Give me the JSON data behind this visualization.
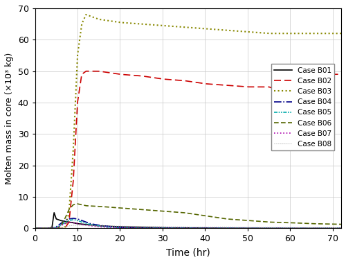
{
  "title": "",
  "xlabel": "Time (hr)",
  "ylabel": "Molten mass in core (×10³ kg)",
  "xlim": [
    0,
    72
  ],
  "ylim": [
    0,
    70
  ],
  "xticks": [
    0,
    10,
    20,
    30,
    40,
    50,
    60,
    70
  ],
  "yticks": [
    0,
    10,
    20,
    30,
    40,
    50,
    60,
    70
  ],
  "background_color": "#ffffff",
  "grid_color": "#c8c8c8",
  "cases": [
    {
      "label": "Case B01",
      "color": "#000000",
      "linestyle": "solid",
      "linewidth": 1.2,
      "key_points": [
        [
          0,
          0
        ],
        [
          3,
          0
        ],
        [
          4,
          0.3
        ],
        [
          4.5,
          5
        ],
        [
          5,
          3
        ],
        [
          6,
          2.5
        ],
        [
          7,
          2.2
        ],
        [
          8,
          2
        ],
        [
          9,
          1.8
        ],
        [
          10,
          1.5
        ],
        [
          15,
          0.8
        ],
        [
          20,
          0.5
        ],
        [
          30,
          0.2
        ],
        [
          40,
          0.1
        ],
        [
          50,
          0.05
        ],
        [
          60,
          0.02
        ],
        [
          72,
          0.01
        ]
      ]
    },
    {
      "label": "Case B02",
      "color": "#cc0000",
      "linestyle": "dashed",
      "linewidth": 1.2,
      "dashes": [
        6,
        3
      ],
      "key_points": [
        [
          0,
          0
        ],
        [
          7,
          0
        ],
        [
          8,
          2
        ],
        [
          9,
          15
        ],
        [
          10,
          40
        ],
        [
          11,
          49
        ],
        [
          12,
          50
        ],
        [
          15,
          50
        ],
        [
          20,
          49
        ],
        [
          25,
          48.5
        ],
        [
          30,
          47.5
        ],
        [
          35,
          47
        ],
        [
          40,
          46
        ],
        [
          45,
          45.5
        ],
        [
          50,
          45
        ],
        [
          55,
          45
        ],
        [
          56,
          44.5
        ],
        [
          57,
          47
        ],
        [
          58,
          49.5
        ],
        [
          60,
          49.5
        ],
        [
          65,
          49
        ],
        [
          70,
          49
        ],
        [
          72,
          49
        ]
      ]
    },
    {
      "label": "Case B03",
      "color": "#888800",
      "linestyle": "dotted",
      "linewidth": 1.5,
      "key_points": [
        [
          0,
          0
        ],
        [
          7,
          0
        ],
        [
          8,
          5
        ],
        [
          9,
          25
        ],
        [
          10,
          55
        ],
        [
          11,
          65
        ],
        [
          12,
          68
        ],
        [
          13,
          67.5
        ],
        [
          15,
          66.5
        ],
        [
          20,
          65.5
        ],
        [
          25,
          65
        ],
        [
          30,
          64.5
        ],
        [
          35,
          64
        ],
        [
          40,
          63.5
        ],
        [
          45,
          63
        ],
        [
          50,
          62.5
        ],
        [
          55,
          62
        ],
        [
          60,
          62
        ],
        [
          65,
          62
        ],
        [
          72,
          62
        ]
      ]
    },
    {
      "label": "Case B04",
      "color": "#000088",
      "linestyle": "dashdot",
      "linewidth": 1.2,
      "key_points": [
        [
          0,
          0
        ],
        [
          4,
          0
        ],
        [
          5,
          0.5
        ],
        [
          6,
          1.5
        ],
        [
          7,
          2.5
        ],
        [
          8,
          3
        ],
        [
          9,
          3.2
        ],
        [
          10,
          3
        ],
        [
          11,
          2.5
        ],
        [
          12,
          2
        ],
        [
          13,
          1.5
        ],
        [
          15,
          1
        ],
        [
          18,
          0.5
        ],
        [
          20,
          0.3
        ],
        [
          25,
          0.1
        ],
        [
          30,
          0.05
        ],
        [
          40,
          0.02
        ],
        [
          50,
          0.01
        ],
        [
          72,
          0.0
        ]
      ]
    },
    {
      "label": "Case B05",
      "color": "#00aaaa",
      "linestyle": "dashdotdotted",
      "linewidth": 1.2,
      "key_points": [
        [
          0,
          0
        ],
        [
          4,
          0
        ],
        [
          5,
          0.3
        ],
        [
          6,
          1
        ],
        [
          7,
          1.8
        ],
        [
          8,
          2.5
        ],
        [
          9,
          2.8
        ],
        [
          10,
          2.5
        ],
        [
          11,
          2
        ],
        [
          12,
          1.5
        ],
        [
          14,
          1
        ],
        [
          16,
          0.5
        ],
        [
          20,
          0.2
        ],
        [
          25,
          0.1
        ],
        [
          30,
          0.05
        ],
        [
          40,
          0.02
        ],
        [
          50,
          0.01
        ],
        [
          72,
          0.0
        ]
      ]
    },
    {
      "label": "Case B06",
      "color": "#556600",
      "linestyle": "dashed",
      "linewidth": 1.2,
      "dashes": [
        4,
        2
      ],
      "key_points": [
        [
          0,
          0
        ],
        [
          5,
          0
        ],
        [
          6,
          0.5
        ],
        [
          7,
          3
        ],
        [
          8,
          6
        ],
        [
          9,
          7.5
        ],
        [
          10,
          7.8
        ],
        [
          11,
          7.5
        ],
        [
          12,
          7.2
        ],
        [
          15,
          7
        ],
        [
          20,
          6.5
        ],
        [
          25,
          6
        ],
        [
          30,
          5.5
        ],
        [
          35,
          5
        ],
        [
          40,
          4
        ],
        [
          45,
          3
        ],
        [
          50,
          2.5
        ],
        [
          55,
          2
        ],
        [
          60,
          1.8
        ],
        [
          65,
          1.5
        ],
        [
          72,
          1.3
        ]
      ]
    },
    {
      "label": "Case B07",
      "color": "#aa00aa",
      "linestyle": "dotted",
      "linewidth": 1.2,
      "key_points": [
        [
          0,
          0
        ],
        [
          4,
          0
        ],
        [
          5,
          0.2
        ],
        [
          6,
          0.8
        ],
        [
          7,
          1.5
        ],
        [
          8,
          2
        ],
        [
          9,
          1.8
        ],
        [
          10,
          1.5
        ],
        [
          12,
          1
        ],
        [
          15,
          0.5
        ],
        [
          20,
          0.2
        ],
        [
          25,
          0.1
        ],
        [
          30,
          0.05
        ],
        [
          40,
          0.02
        ],
        [
          72,
          0.0
        ]
      ]
    },
    {
      "label": "Case B08",
      "color": "#aaaaaa",
      "linestyle": "dotted",
      "linewidth": 0.8,
      "key_points": [
        [
          0,
          0
        ],
        [
          5,
          0
        ],
        [
          6,
          0.2
        ],
        [
          7,
          0.5
        ],
        [
          8,
          0.8
        ],
        [
          9,
          1
        ],
        [
          10,
          1
        ],
        [
          12,
          0.9
        ],
        [
          15,
          0.8
        ],
        [
          20,
          0.7
        ],
        [
          25,
          0.6
        ],
        [
          30,
          0.5
        ],
        [
          40,
          0.4
        ],
        [
          50,
          0.3
        ],
        [
          60,
          0.25
        ],
        [
          72,
          0.2
        ]
      ]
    }
  ]
}
